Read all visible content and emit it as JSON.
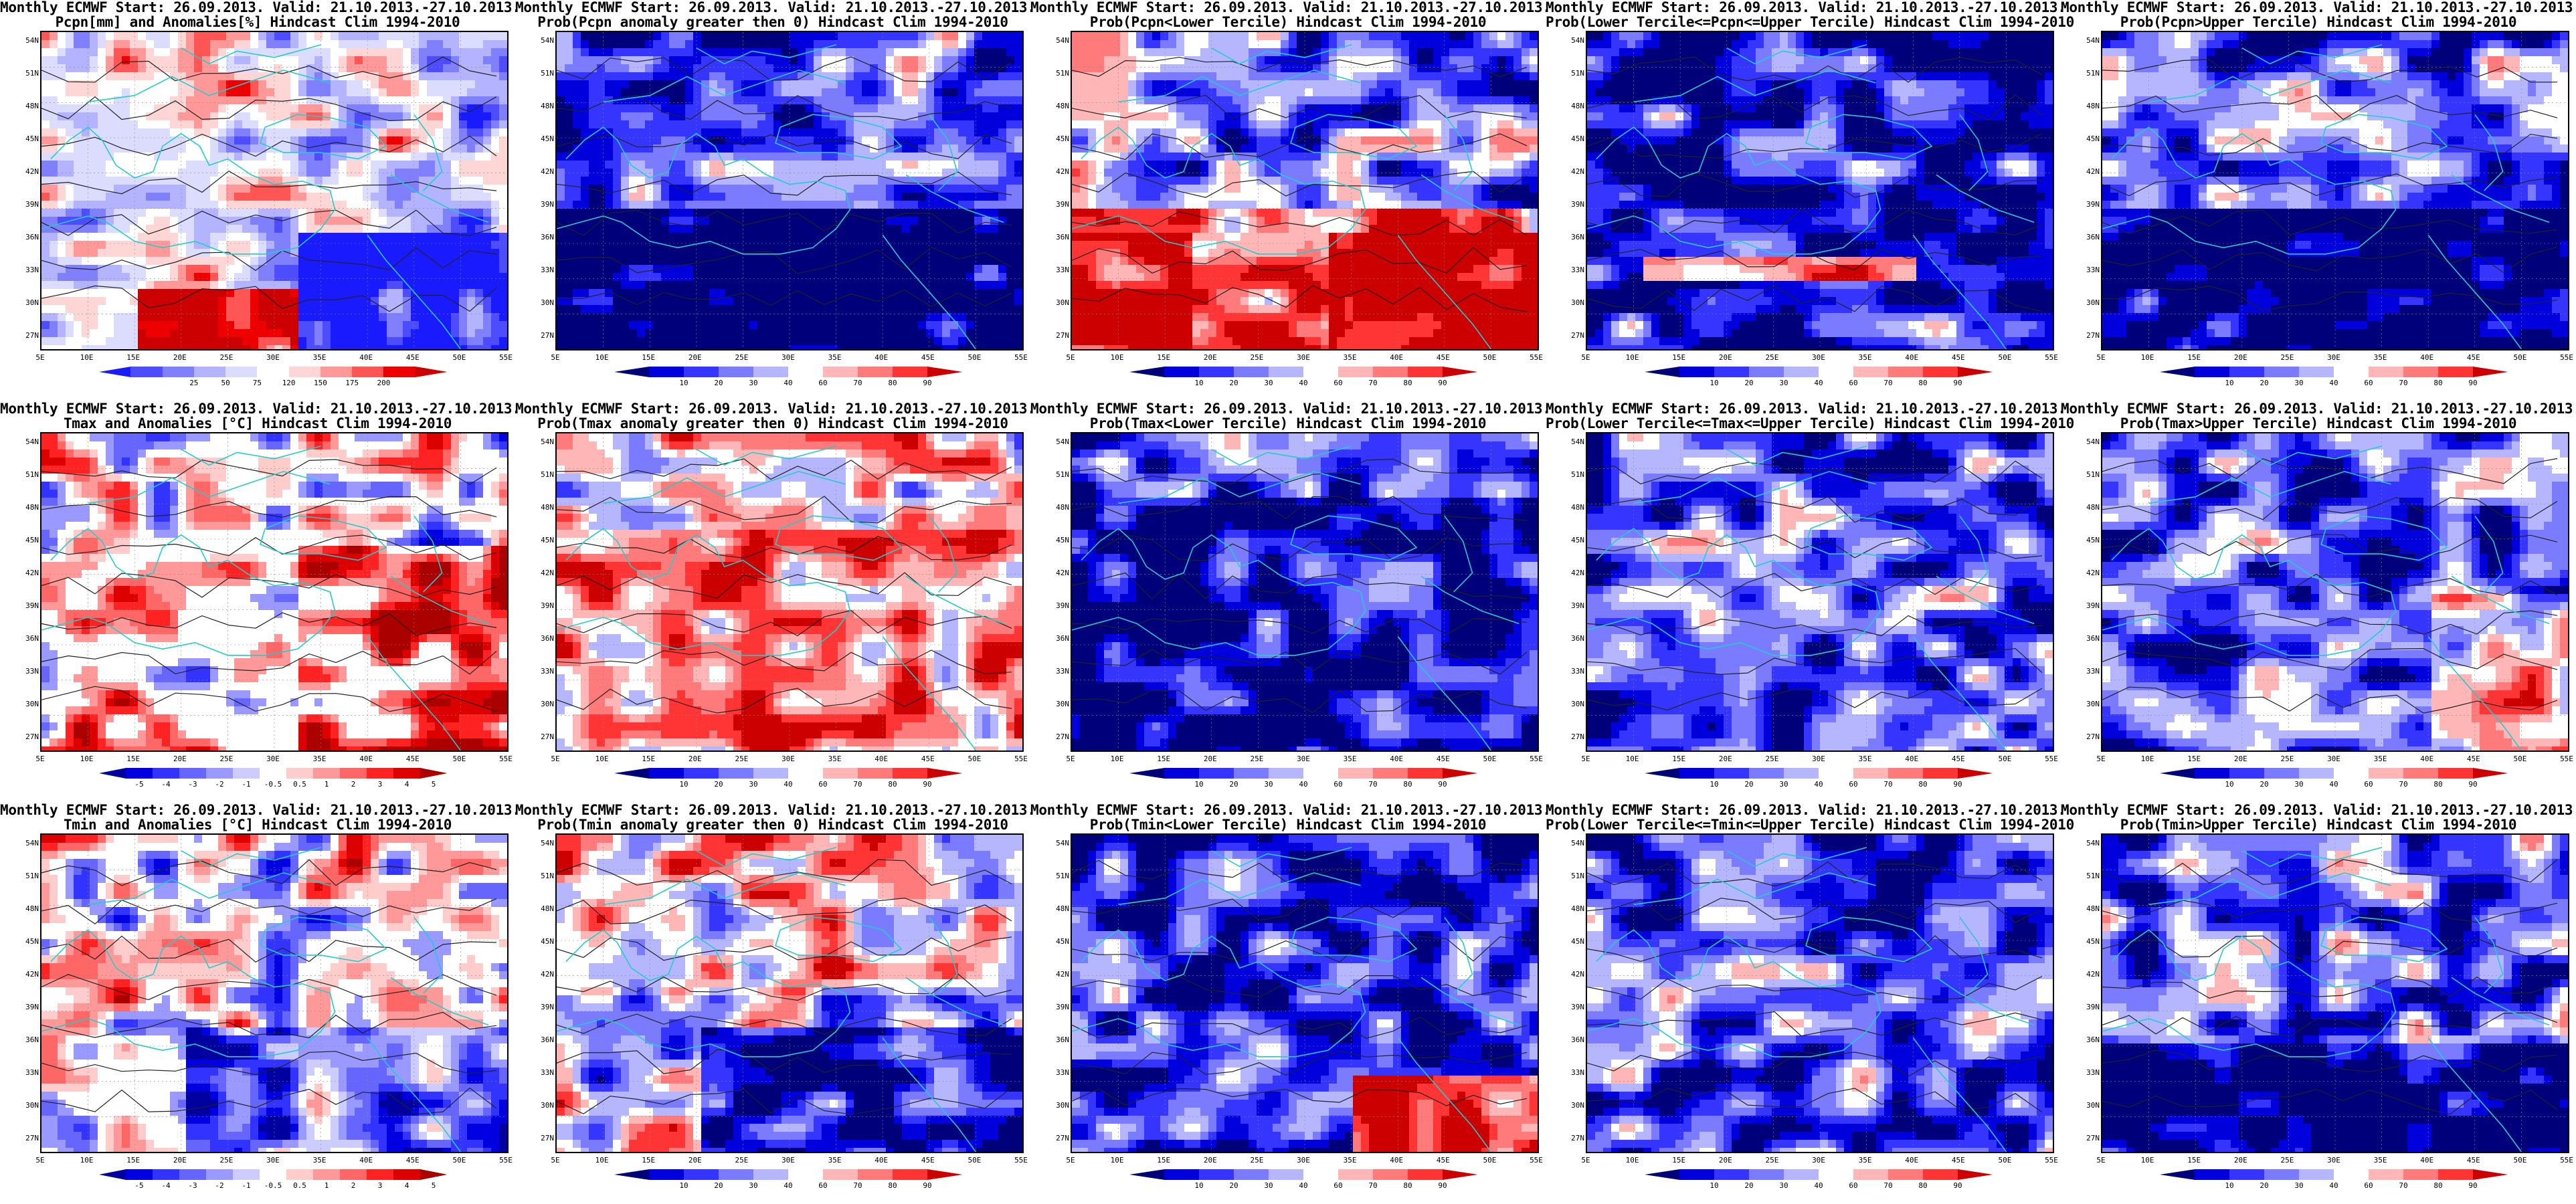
{
  "rows": [
    {
      "variable": "Pcpn",
      "panels": [
        {
          "title1": "Monthly ECMWF Start: 26.09.2013. Valid: 21.10.2013.-27.10.2013.",
          "title2": "Pcpn[mm] and Anomalies[%] Hindcast Clim 1994-2010",
          "scale": "anom_pct",
          "field": "precip_anom"
        },
        {
          "title1": "Monthly ECMWF Start: 26.09.2013. Valid: 21.10.2013.-27.10.2013.",
          "title2": "Prob(Pcpn anomaly greater then 0) Hindcast Clim 1994-2010",
          "scale": "prob",
          "field": "precip_prob_pos"
        },
        {
          "title1": "Monthly ECMWF Start: 26.09.2013. Valid: 21.10.2013.-27.10.2013.",
          "title2": "Prob(Pcpn<Lower Tercile) Hindcast Clim 1994-2010",
          "scale": "prob",
          "field": "precip_prob_low"
        },
        {
          "title1": "Monthly ECMWF Start: 26.09.2013. Valid: 21.10.2013.-27.10.2013.",
          "title2": "Prob(Lower Tercile<=Pcpn<=Upper Tercile) Hindcast Clim 1994-2010",
          "scale": "prob",
          "field": "precip_prob_mid"
        },
        {
          "title1": "Monthly ECMWF Start: 26.09.2013. Valid: 21.10.2013.-27.10.2013.",
          "title2": "Prob(Pcpn>Upper Tercile) Hindcast Clim 1994-2010",
          "scale": "prob",
          "field": "precip_prob_up"
        }
      ]
    },
    {
      "variable": "Tmax",
      "panels": [
        {
          "title1": "Monthly ECMWF Start: 26.09.2013. Valid: 21.10.2013.-27.10.2013.",
          "title2": "Tmax and Anomalies [°C] Hindcast Clim 1994-2010",
          "scale": "anom_c",
          "field": "tmax_anom"
        },
        {
          "title1": "Monthly ECMWF Start: 26.09.2013. Valid: 21.10.2013.-27.10.2013.",
          "title2": "Prob(Tmax anomaly greater then 0) Hindcast Clim 1994-2010",
          "scale": "prob",
          "field": "tmax_prob_pos"
        },
        {
          "title1": "Monthly ECMWF Start: 26.09.2013. Valid: 21.10.2013.-27.10.2013.",
          "title2": "Prob(Tmax<Lower Tercile) Hindcast Clim 1994-2010",
          "scale": "prob",
          "field": "tmax_prob_low"
        },
        {
          "title1": "Monthly ECMWF Start: 26.09.2013. Valid: 21.10.2013.-27.10.2013.",
          "title2": "Prob(Lower Tercile<=Tmax<=Upper Tercile) Hindcast Clim 1994-2010",
          "scale": "prob",
          "field": "tmax_prob_mid"
        },
        {
          "title1": "Monthly ECMWF Start: 26.09.2013. Valid: 21.10.2013.-27.10.2013.",
          "title2": "Prob(Tmax>Upper Tercile) Hindcast Clim 1994-2010",
          "scale": "prob",
          "field": "tmax_prob_up"
        }
      ]
    },
    {
      "variable": "Tmin",
      "panels": [
        {
          "title1": "Monthly ECMWF Start: 26.09.2013. Valid: 21.10.2013.-27.10.2013.",
          "title2": "Tmin and Anomalies [°C] Hindcast Clim 1994-2010",
          "scale": "anom_c",
          "field": "tmin_anom"
        },
        {
          "title1": "Monthly ECMWF Start: 26.09.2013. Valid: 21.10.2013.-27.10.2013.",
          "title2": "Prob(Tmin anomaly greater then 0) Hindcast Clim 1994-2010",
          "scale": "prob",
          "field": "tmin_prob_pos"
        },
        {
          "title1": "Monthly ECMWF Start: 26.09.2013. Valid: 21.10.2013.-27.10.2013.",
          "title2": "Prob(Tmin<Lower Tercile) Hindcast Clim 1994-2010",
          "scale": "prob",
          "field": "tmin_prob_low"
        },
        {
          "title1": "Monthly ECMWF Start: 26.09.2013. Valid: 21.10.2013.-27.10.2013.",
          "title2": "Prob(Lower Tercile<=Tmin<=Upper Tercile) Hindcast Clim 1994-2010",
          "scale": "prob",
          "field": "tmin_prob_mid"
        },
        {
          "title1": "Monthly ECMWF Start: 26.09.2013. Valid: 21.10.2013.-27.10.2013.",
          "title2": "Prob(Tmin>Upper Tercile) Hindcast Clim 1994-2010",
          "scale": "prob",
          "field": "tmin_prob_up"
        }
      ]
    }
  ],
  "axes": {
    "lat_labels": [
      "54N",
      "51N",
      "48N",
      "45N",
      "42N",
      "39N",
      "36N",
      "33N",
      "30N",
      "27N"
    ],
    "lon_labels": [
      "5E",
      "10E",
      "15E",
      "20E",
      "25E",
      "30E",
      "35E",
      "40E",
      "45E",
      "50E",
      "55E"
    ]
  },
  "scales": {
    "anom_pct": {
      "labels": [
        "25",
        "50",
        "75",
        "120",
        "150",
        "175",
        "200"
      ],
      "colors": [
        "#1a1aff",
        "#4d4dff",
        "#8080ff",
        "#b3b3ff",
        "#dcdcff",
        "#ffffff",
        "#ffd6d6",
        "#ff9999",
        "#ff5555",
        "#ee0000",
        "#cc0000"
      ]
    },
    "anom_c": {
      "labels": [
        "-5",
        "-4",
        "-3",
        "-2",
        "-1",
        "-0.5",
        "0.5",
        "1",
        "2",
        "3",
        "4",
        "5"
      ],
      "colors": [
        "#0000a0",
        "#0000e0",
        "#3333ff",
        "#6666ff",
        "#9999ff",
        "#ccccff",
        "#ffffff",
        "#ffcccc",
        "#ff9999",
        "#ff6666",
        "#ff2222",
        "#dd0000",
        "#aa0000"
      ]
    },
    "prob": {
      "labels": [
        "10",
        "20",
        "30",
        "40",
        "60",
        "70",
        "80",
        "90"
      ],
      "colors": [
        "#00007a",
        "#0000dd",
        "#3535ff",
        "#7b7bff",
        "#b6b6ff",
        "#ffffff",
        "#ffb6b6",
        "#ff7b7b",
        "#ff3535",
        "#cc0000"
      ]
    }
  },
  "palette": {
    "coast": "#22cccc",
    "contour": "#222222",
    "grid": "#888888"
  }
}
